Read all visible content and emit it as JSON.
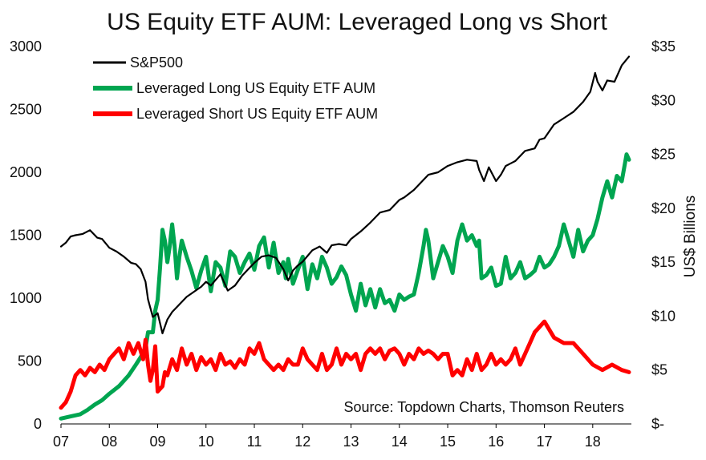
{
  "chart_data": {
    "type": "line",
    "title": "US Equity ETF AUM: Leveraged Long vs Short",
    "source": "Source: Topdown Charts, Thomson Reuters",
    "x_labels": [
      "07",
      "08",
      "09",
      "10",
      "11",
      "12",
      "13",
      "14",
      "15",
      "16",
      "17",
      "18"
    ],
    "x_range": [
      2007.0,
      2018.75
    ],
    "left_axis": {
      "label": "",
      "ticks": [
        "0",
        "500",
        "1000",
        "1500",
        "2000",
        "2500",
        "3000"
      ],
      "tick_values": [
        0,
        500,
        1000,
        1500,
        2000,
        2500,
        3000
      ],
      "ylim": [
        0,
        3000
      ]
    },
    "right_axis": {
      "label": "US$ Billions",
      "ticks": [
        "$-",
        "$5",
        "$10",
        "$15",
        "$20",
        "$25",
        "$30",
        "$35"
      ],
      "tick_values": [
        0,
        5,
        10,
        15,
        20,
        25,
        30,
        35
      ],
      "ylim": [
        0,
        35
      ]
    },
    "legend_position": "top-left",
    "series": [
      {
        "name": "S&P500",
        "axis": "left",
        "color": "#000000",
        "x": [
          2007.0,
          2007.1,
          2007.2,
          2007.3,
          2007.45,
          2007.6,
          2007.75,
          2007.85,
          2008.0,
          2008.15,
          2008.3,
          2008.45,
          2008.55,
          2008.65,
          2008.75,
          2008.8,
          2008.9,
          2009.0,
          2009.1,
          2009.2,
          2009.3,
          2009.45,
          2009.6,
          2009.75,
          2009.9,
          2010.0,
          2010.1,
          2010.3,
          2010.45,
          2010.6,
          2010.75,
          2010.9,
          2011.0,
          2011.15,
          2011.3,
          2011.45,
          2011.6,
          2011.7,
          2011.8,
          2011.9,
          2012.0,
          2012.2,
          2012.35,
          2012.5,
          2012.6,
          2012.75,
          2012.9,
          2013.0,
          2013.2,
          2013.4,
          2013.6,
          2013.8,
          2014.0,
          2014.1,
          2014.3,
          2014.5,
          2014.6,
          2014.8,
          2015.0,
          2015.2,
          2015.4,
          2015.6,
          2015.65,
          2015.75,
          2015.85,
          2016.0,
          2016.1,
          2016.2,
          2016.4,
          2016.6,
          2016.8,
          2016.9,
          2017.0,
          2017.2,
          2017.4,
          2017.6,
          2017.8,
          2017.95,
          2018.05,
          2018.1,
          2018.2,
          2018.3,
          2018.45,
          2018.6,
          2018.75
        ],
        "y": [
          1410,
          1440,
          1490,
          1500,
          1510,
          1540,
          1480,
          1470,
          1400,
          1370,
          1330,
          1280,
          1270,
          1230,
          1130,
          990,
          850,
          880,
          720,
          830,
          890,
          950,
          1010,
          1050,
          1090,
          1130,
          1100,
          1190,
          1060,
          1100,
          1180,
          1240,
          1280,
          1330,
          1340,
          1320,
          1230,
          1140,
          1220,
          1260,
          1290,
          1380,
          1410,
          1360,
          1420,
          1430,
          1420,
          1470,
          1530,
          1600,
          1680,
          1700,
          1780,
          1800,
          1860,
          1940,
          1980,
          2000,
          2050,
          2080,
          2100,
          2090,
          2020,
          1930,
          2040,
          1930,
          1980,
          2050,
          2090,
          2170,
          2190,
          2260,
          2270,
          2380,
          2430,
          2480,
          2560,
          2640,
          2790,
          2720,
          2650,
          2730,
          2720,
          2850,
          2920
        ]
      },
      {
        "name": "Leveraged Long US Equity ETF AUM",
        "axis": "right",
        "color": "#00a550",
        "x": [
          2007.0,
          2007.2,
          2007.4,
          2007.55,
          2007.7,
          2007.85,
          2008.0,
          2008.2,
          2008.4,
          2008.55,
          2008.65,
          2008.75,
          2008.8,
          2008.9,
          2008.95,
          2009.0,
          2009.05,
          2009.1,
          2009.15,
          2009.2,
          2009.25,
          2009.3,
          2009.35,
          2009.4,
          2009.45,
          2009.5,
          2009.6,
          2009.7,
          2009.8,
          2009.9,
          2010.0,
          2010.1,
          2010.2,
          2010.3,
          2010.4,
          2010.5,
          2010.6,
          2010.7,
          2010.8,
          2010.9,
          2011.0,
          2011.1,
          2011.2,
          2011.3,
          2011.4,
          2011.5,
          2011.6,
          2011.65,
          2011.7,
          2011.8,
          2011.9,
          2012.0,
          2012.1,
          2012.2,
          2012.3,
          2012.4,
          2012.5,
          2012.6,
          2012.7,
          2012.8,
          2012.9,
          2013.0,
          2013.1,
          2013.2,
          2013.3,
          2013.4,
          2013.5,
          2013.6,
          2013.7,
          2013.8,
          2013.9,
          2014.0,
          2014.1,
          2014.2,
          2014.3,
          2014.4,
          2014.5,
          2014.55,
          2014.6,
          2014.7,
          2014.8,
          2014.9,
          2015.0,
          2015.1,
          2015.2,
          2015.3,
          2015.4,
          2015.5,
          2015.6,
          2015.65,
          2015.7,
          2015.8,
          2015.9,
          2016.0,
          2016.1,
          2016.2,
          2016.3,
          2016.4,
          2016.5,
          2016.6,
          2016.7,
          2016.8,
          2016.9,
          2017.0,
          2017.1,
          2017.2,
          2017.3,
          2017.4,
          2017.5,
          2017.6,
          2017.7,
          2017.8,
          2017.9,
          2018.0,
          2018.1,
          2018.2,
          2018.3,
          2018.4,
          2018.5,
          2018.6,
          2018.7,
          2018.75
        ],
        "y": [
          0.5,
          0.7,
          0.9,
          1.3,
          1.8,
          2.2,
          2.8,
          3.5,
          4.5,
          5.5,
          6.2,
          7.0,
          8.5,
          8.5,
          10.5,
          11.5,
          14.5,
          18.0,
          17.0,
          15.0,
          16.5,
          18.5,
          16.5,
          13.5,
          15.5,
          17.0,
          15.5,
          14.2,
          12.6,
          14.2,
          15.5,
          12.3,
          15.0,
          14.5,
          12.8,
          16.0,
          15.5,
          14.0,
          15.0,
          15.8,
          14.3,
          16.5,
          17.3,
          14.5,
          16.8,
          14.0,
          15.0,
          13.5,
          15.3,
          13.0,
          14.3,
          15.5,
          12.5,
          14.8,
          13.5,
          15.5,
          14.5,
          13.0,
          13.6,
          14.6,
          13.8,
          12.0,
          10.5,
          13.0,
          11.0,
          12.5,
          10.8,
          12.5,
          11.2,
          11.5,
          10.5,
          12.0,
          11.5,
          11.8,
          12.0,
          14.0,
          16.5,
          18.0,
          17.0,
          13.5,
          15.0,
          16.5,
          15.5,
          14.0,
          17.0,
          18.5,
          17.0,
          17.5,
          16.5,
          17.0,
          13.5,
          13.8,
          14.5,
          12.8,
          13.0,
          15.5,
          13.5,
          14.0,
          15.0,
          13.5,
          13.8,
          14.2,
          15.5,
          14.5,
          14.8,
          15.5,
          16.5,
          18.5,
          17.0,
          15.5,
          18.0,
          16.0,
          17.0,
          17.5,
          19.0,
          21.0,
          22.5,
          21.0,
          23.0,
          22.5,
          25.0,
          24.5
        ]
      },
      {
        "name": "Leveraged Short US Equity ETF AUM",
        "axis": "right",
        "color": "#ff0000",
        "x": [
          2007.0,
          2007.1,
          2007.2,
          2007.3,
          2007.4,
          2007.5,
          2007.6,
          2007.7,
          2007.8,
          2007.9,
          2008.0,
          2008.1,
          2008.2,
          2008.3,
          2008.4,
          2008.5,
          2008.6,
          2008.7,
          2008.75,
          2008.8,
          2008.85,
          2008.9,
          2008.95,
          2009.0,
          2009.1,
          2009.15,
          2009.2,
          2009.3,
          2009.4,
          2009.5,
          2009.6,
          2009.7,
          2009.8,
          2009.9,
          2010.0,
          2010.1,
          2010.2,
          2010.3,
          2010.4,
          2010.5,
          2010.6,
          2010.7,
          2010.8,
          2010.9,
          2011.0,
          2011.1,
          2011.2,
          2011.3,
          2011.4,
          2011.5,
          2011.6,
          2011.7,
          2011.8,
          2011.9,
          2012.0,
          2012.1,
          2012.2,
          2012.3,
          2012.4,
          2012.5,
          2012.6,
          2012.7,
          2012.8,
          2012.9,
          2013.0,
          2013.1,
          2013.2,
          2013.3,
          2013.4,
          2013.5,
          2013.6,
          2013.7,
          2013.8,
          2013.9,
          2014.0,
          2014.1,
          2014.2,
          2014.3,
          2014.4,
          2014.5,
          2014.6,
          2014.7,
          2014.8,
          2014.9,
          2015.0,
          2015.1,
          2015.2,
          2015.3,
          2015.4,
          2015.5,
          2015.6,
          2015.7,
          2015.8,
          2015.9,
          2016.0,
          2016.1,
          2016.2,
          2016.3,
          2016.4,
          2016.5,
          2016.6,
          2016.7,
          2016.8,
          2016.9,
          2017.0,
          2017.2,
          2017.4,
          2017.6,
          2017.8,
          2018.0,
          2018.2,
          2018.4,
          2018.6,
          2018.75
        ],
        "y": [
          1.5,
          2.0,
          3.0,
          4.5,
          5.0,
          4.5,
          5.2,
          4.8,
          5.5,
          5.0,
          6.0,
          6.5,
          7.0,
          6.0,
          7.5,
          6.5,
          7.5,
          6.0,
          7.8,
          5.5,
          4.0,
          5.0,
          7.2,
          3.0,
          3.5,
          4.8,
          4.5,
          6.0,
          5.0,
          7.0,
          5.5,
          6.5,
          5.0,
          6.2,
          5.5,
          6.0,
          5.0,
          6.5,
          5.5,
          5.8,
          5.2,
          6.0,
          5.5,
          7.0,
          6.5,
          7.5,
          6.0,
          5.5,
          5.0,
          5.5,
          5.0,
          6.0,
          5.5,
          5.5,
          7.0,
          6.0,
          5.5,
          5.0,
          6.5,
          5.0,
          5.5,
          7.0,
          5.5,
          6.5,
          6.0,
          6.5,
          5.0,
          6.5,
          7.0,
          6.5,
          7.0,
          6.0,
          6.8,
          7.0,
          6.5,
          5.5,
          6.5,
          6.0,
          7.0,
          6.5,
          6.8,
          6.5,
          6.0,
          6.5,
          6.5,
          4.5,
          5.0,
          4.5,
          6.0,
          5.0,
          6.5,
          5.0,
          5.5,
          6.5,
          5.5,
          6.0,
          5.5,
          6.0,
          7.0,
          5.5,
          6.5,
          7.5,
          8.5,
          9.0,
          9.5,
          8.0,
          7.5,
          7.5,
          6.5,
          5.5,
          5.0,
          5.5,
          5.0,
          4.8
        ]
      }
    ]
  }
}
